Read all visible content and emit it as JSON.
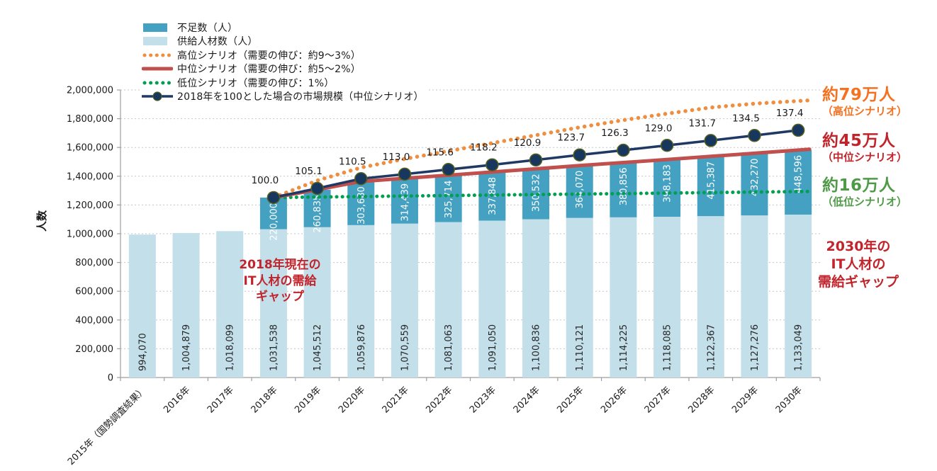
{
  "chart_data": {
    "type": "bar",
    "title": "",
    "ylabel": "人数",
    "ylim": [
      0,
      2000000
    ],
    "ytick_step": 200000,
    "ytick_labels": [
      "0",
      "200,000",
      "400,000",
      "600,000",
      "800,000",
      "1,000,000",
      "1,200,000",
      "1,400,000",
      "1,600,000",
      "1,800,000",
      "2,000,000"
    ],
    "grid": true,
    "legend_position": "top-left",
    "categories": [
      "2015年（国勢調査結果）",
      "2016年",
      "2017年",
      "2018年",
      "2019年",
      "2020年",
      "2021年",
      "2022年",
      "2023年",
      "2024年",
      "2025年",
      "2026年",
      "2027年",
      "2028年",
      "2029年",
      "2030年"
    ],
    "series": [
      {
        "name": "不足数（人）",
        "type": "bar-stacked-top",
        "color": "#45A1C1",
        "label_color": "#FFFFFF",
        "values": [
          null,
          null,
          null,
          220000,
          260835,
          303680,
          314439,
          325714,
          337848,
          350532,
          364070,
          380856,
          398183,
          415387,
          432270,
          448596
        ]
      },
      {
        "name": "供給人材数（人）",
        "type": "bar",
        "color": "#C3DFEA",
        "label_color": "#262626",
        "values": [
          994070,
          1004879,
          1018099,
          1031538,
          1045512,
          1059876,
          1070559,
          1081063,
          1091050,
          1100836,
          1110121,
          1114225,
          1118085,
          1122367,
          1127276,
          1133049
        ]
      },
      {
        "name": "高位シナリオ（需要の伸び：約9～3%）",
        "type": "dotted-line",
        "color": "#EF8E3E",
        "estimated": true,
        "values": [
          null,
          null,
          null,
          1251538,
          1370000,
          1460000,
          1520000,
          1575000,
          1630000,
          1685000,
          1740000,
          1790000,
          1835000,
          1878000,
          1905000,
          1923000
        ]
      },
      {
        "name": "中位シナリオ（需要の伸び：約5～2%）",
        "type": "line",
        "color": "#C0504D",
        "values": [
          null,
          null,
          null,
          1251538,
          1306347,
          1363556,
          1384998,
          1406777,
          1428898,
          1451368,
          1474191,
          1495081,
          1516268,
          1537754,
          1559546,
          1581645
        ]
      },
      {
        "name": "低位シナリオ（需要の伸び：1%）",
        "type": "dotted-line",
        "color": "#00A050",
        "estimated": true,
        "values": [
          null,
          null,
          null,
          1251538,
          1255000,
          1258500,
          1262000,
          1265500,
          1269000,
          1272500,
          1276000,
          1279400,
          1282900,
          1286300,
          1289700,
          1293049
        ]
      },
      {
        "name": "2018年を100とした場合の市場規模（中位シナリオ）",
        "type": "marker-line",
        "color": "#1F3864",
        "marker_fill": "#17375E",
        "marker_stroke": "#55611F",
        "index_base": 1251538,
        "index_values": [
          null,
          null,
          null,
          100.0,
          105.1,
          110.5,
          113.0,
          115.6,
          118.2,
          120.9,
          123.7,
          126.3,
          129.0,
          131.7,
          134.5,
          137.4
        ]
      }
    ]
  },
  "annotations": {
    "current_gap": {
      "color": "#C2242C",
      "lines": [
        "2018年現在の",
        "IT人材の需給",
        "ギャップ"
      ]
    },
    "right": [
      {
        "value": "約79万人",
        "scenario": "（高位シナリオ）",
        "color": "#F4711F"
      },
      {
        "value": "約45万人",
        "scenario": "（中位シナリオ）",
        "color": "#C2242C"
      },
      {
        "value": "約16万人",
        "scenario": "（低位シナリオ）",
        "color": "#4E9A47"
      }
    ],
    "right_gap": {
      "color": "#C2242C",
      "lines": [
        "2030年の",
        "IT人材の",
        "需給ギャップ"
      ]
    }
  },
  "colors": {
    "grid": "#C6C6C6",
    "axis": "#9E9E9E",
    "tick_text": "#1a1a1a",
    "index_label_text": "#1a1a1a"
  }
}
